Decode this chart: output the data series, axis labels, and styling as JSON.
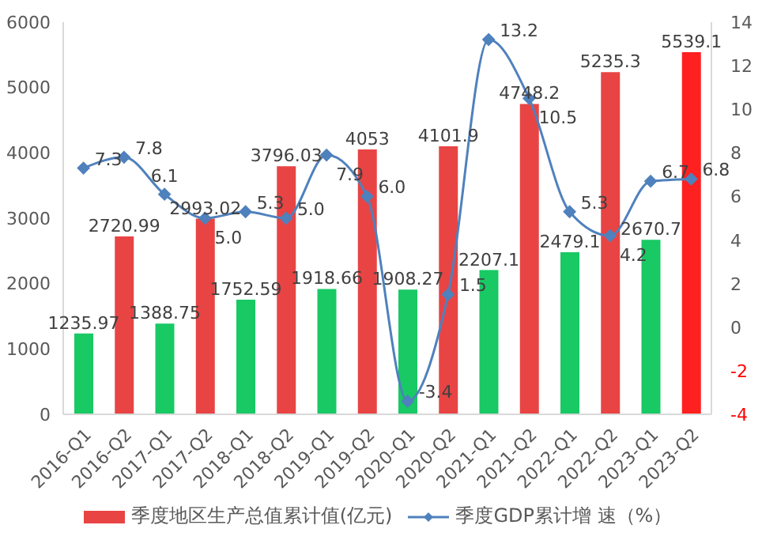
{
  "chart_data": {
    "type": "bar",
    "categories": [
      "2016-Q1",
      "2016-Q2",
      "2017-Q1",
      "2017-Q2",
      "2018-Q1",
      "2018-Q2",
      "2019-Q1",
      "2019-Q2",
      "2020-Q1",
      "2020-Q2",
      "2021-Q1",
      "2021-Q2",
      "2022-Q1",
      "2022-Q2",
      "2023-Q1",
      "2023-Q2"
    ],
    "series": [
      {
        "name": "季度地区生产总值累计值(亿元)",
        "color": "#e84444",
        "colors": [
          "#18c964",
          "#e84444",
          "#18c964",
          "#e84444",
          "#18c964",
          "#e84444",
          "#18c964",
          "#e84444",
          "#18c964",
          "#e84444",
          "#18c964",
          "#e84444",
          "#18c964",
          "#e84444",
          "#18c964",
          "#ff2020"
        ],
        "values": [
          1235.97,
          2720.99,
          1388.75,
          2993.02,
          1752.59,
          3796.03,
          1918.66,
          4053,
          1908.27,
          4101.9,
          2207.1,
          4748.2,
          2479.1,
          5235.3,
          2670.7,
          5539.1
        ]
      },
      {
        "name": "季度GDP累计增 速（%）",
        "type": "line",
        "axis": "y2",
        "color": "#4f81bd",
        "marker": "diamond",
        "values": [
          7.3,
          7.8,
          6.1,
          5.0,
          5.3,
          5.0,
          7.9,
          6.0,
          -3.4,
          1.5,
          13.2,
          10.5,
          5.3,
          4.2,
          6.7,
          6.8
        ],
        "value_labels": [
          "7.3",
          "7.8",
          "6.1",
          "5.0",
          "5.3",
          "5.0",
          "7.9",
          "6.0",
          "-3.4",
          "1.5",
          "13.2",
          "10.5",
          "5.3",
          "4.2",
          "6.7",
          "6.8"
        ]
      }
    ],
    "ylim": [
      0,
      6000
    ],
    "yticks": [
      0,
      1000,
      2000,
      3000,
      4000,
      5000,
      6000
    ],
    "y2lim": [
      -4,
      14
    ],
    "y2ticks": [
      -4,
      -2,
      0,
      2,
      4,
      6,
      8,
      10,
      12,
      14
    ],
    "data_labels": true,
    "grid": false,
    "legend": "bottom"
  }
}
